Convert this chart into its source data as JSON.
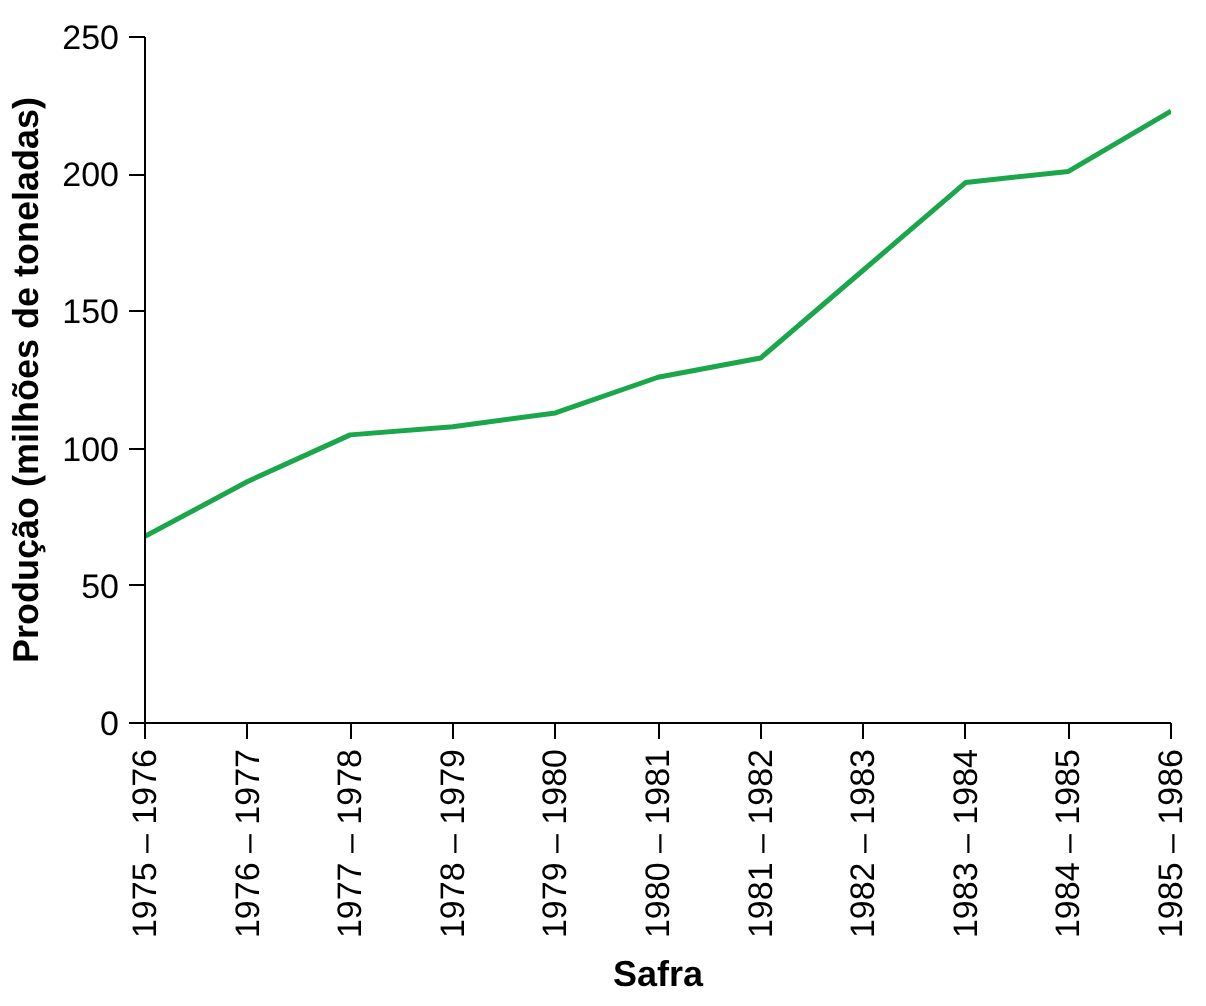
{
  "chart_data": {
    "type": "line",
    "xlabel": "Safra",
    "ylabel": "Produção (milhões de toneladas)",
    "categories": [
      "1975 – 1976",
      "1976 – 1977",
      "1977 – 1978",
      "1978 – 1979",
      "1979 – 1980",
      "1980 – 1981",
      "1981 – 1982",
      "1982 – 1983",
      "1983 – 1984",
      "1984 – 1985",
      "1985 – 1986"
    ],
    "series": [
      {
        "color": "#1aa64a",
        "values": [
          68,
          88,
          105,
          108,
          113,
          126,
          133,
          165,
          197,
          201,
          223
        ]
      }
    ],
    "ylim": [
      0,
      250
    ],
    "yticks": [
      0,
      50,
      100,
      150,
      200,
      250
    ],
    "grid": false,
    "marker": "none",
    "line_style": "solid"
  }
}
